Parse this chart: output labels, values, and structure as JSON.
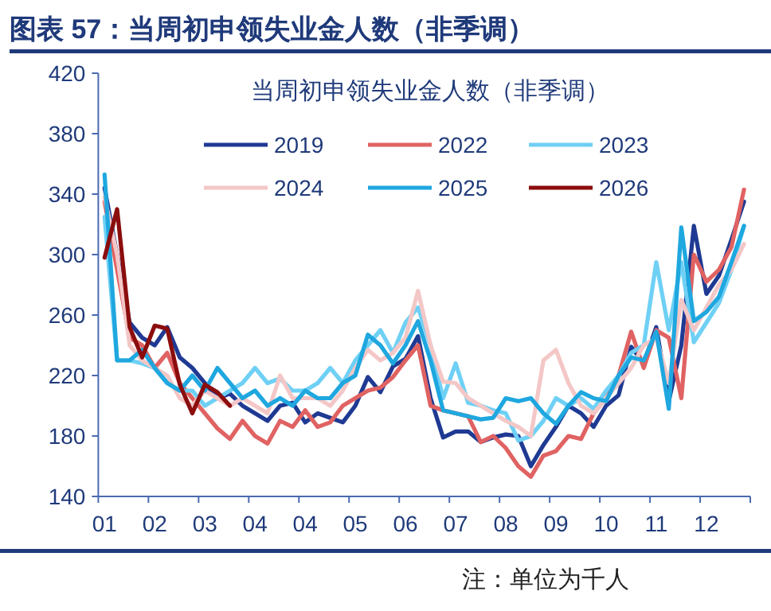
{
  "chart_data": {
    "type": "line",
    "title": "图表 57：当周初申领失业金人数（非季调）",
    "subtitle": "当周初申领失业金人数（非季调）",
    "annotations": [
      "注：单位为千人"
    ],
    "categories": [
      "01",
      null,
      null,
      null,
      "02",
      null,
      null,
      null,
      "03",
      null,
      null,
      null,
      "04",
      null,
      null,
      null,
      "04",
      null,
      null,
      null,
      "05",
      null,
      null,
      null,
      "06",
      null,
      null,
      null,
      "07",
      null,
      null,
      null,
      "08",
      null,
      null,
      null,
      "09",
      null,
      null,
      null,
      "10",
      null,
      null,
      null,
      "11",
      null,
      null,
      null,
      "12",
      null,
      null,
      null
    ],
    "ylim": [
      140,
      420
    ],
    "yticks": [
      140,
      180,
      220,
      260,
      300,
      340,
      380,
      420
    ],
    "grid": false,
    "legend": "top",
    "marker": "none",
    "line_style": "solid",
    "series": [
      {
        "name": "2019",
        "color": "#1f3a93",
        "values": [
          344,
          300,
          255,
          245,
          240,
          252,
          232,
          225,
          215,
          205,
          208,
          200,
          195,
          190,
          200,
          202,
          189,
          195,
          192,
          189,
          200,
          219,
          209,
          226,
          231,
          246,
          205,
          179,
          183,
          183,
          176,
          179,
          181,
          180,
          160,
          174,
          186,
          200,
          195,
          186,
          200,
          207,
          239,
          228,
          252,
          203,
          240,
          319,
          274,
          286,
          310,
          335
        ]
      },
      {
        "name": "2022",
        "color": "#e06262",
        "values": [
          335,
          290,
          245,
          240,
          225,
          235,
          215,
          205,
          195,
          185,
          178,
          190,
          180,
          175,
          190,
          186,
          197,
          186,
          189,
          200,
          205,
          210,
          212,
          219,
          230,
          240,
          200,
          197,
          195,
          193,
          176,
          180,
          172,
          160,
          153,
          167,
          170,
          180,
          178,
          195,
          205,
          220,
          249,
          225,
          250,
          245,
          205,
          300,
          282,
          290,
          305,
          343
        ]
      },
      {
        "name": "2023",
        "color": "#6fd0f5",
        "values": [
          325,
          230,
          230,
          228,
          225,
          215,
          210,
          210,
          200,
          205,
          210,
          215,
          225,
          215,
          218,
          210,
          210,
          215,
          225,
          215,
          230,
          240,
          250,
          235,
          255,
          265,
          240,
          205,
          228,
          202,
          200,
          197,
          195,
          177,
          180,
          190,
          205,
          200,
          205,
          198,
          210,
          220,
          235,
          240,
          295,
          250,
          295,
          242,
          255,
          268,
          290,
          319
        ]
      },
      {
        "name": "2024",
        "color": "#f4c7c7",
        "values": [
          338,
          300,
          240,
          230,
          225,
          220,
          205,
          200,
          210,
          205,
          200,
          205,
          200,
          195,
          220,
          205,
          205,
          205,
          200,
          210,
          225,
          237,
          230,
          235,
          245,
          276,
          240,
          216,
          215,
          205,
          200,
          195,
          190,
          186,
          180,
          230,
          237,
          215,
          200,
          195,
          205,
          215,
          225,
          240,
          245,
          215,
          270,
          250,
          265,
          280,
          290,
          307
        ]
      },
      {
        "name": "2025",
        "color": "#1fa7df",
        "values": [
          353,
          230,
          230,
          237,
          225,
          215,
          210,
          220,
          210,
          225,
          215,
          205,
          210,
          200,
          205,
          200,
          210,
          205,
          205,
          215,
          220,
          247,
          240,
          228,
          240,
          256,
          230,
          197,
          195,
          193,
          191,
          192,
          205,
          203,
          205,
          195,
          188,
          200,
          209,
          205,
          203,
          220,
          232,
          230,
          249,
          198,
          318,
          256,
          262,
          272,
          295,
          319
        ]
      },
      {
        "name": "2026",
        "color": "#8b0d0d",
        "values": [
          298,
          330,
          252,
          232,
          253,
          251,
          214,
          195,
          214,
          209,
          200,
          null,
          null,
          null,
          null,
          null,
          null,
          null,
          null,
          null,
          null,
          null,
          null,
          null,
          null,
          null,
          null,
          null,
          null,
          null,
          null,
          null,
          null,
          null,
          null,
          null,
          null,
          null,
          null,
          null,
          null,
          null,
          null,
          null,
          null,
          null,
          null,
          null,
          null,
          null,
          null,
          null
        ]
      }
    ]
  }
}
